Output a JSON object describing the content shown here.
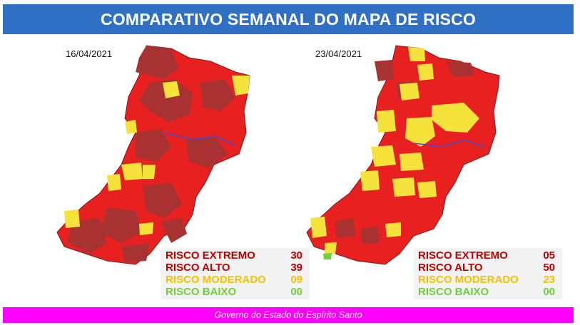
{
  "header": {
    "title": "COMPARATIVO SEMANAL DO MAPA DE RISCO"
  },
  "colors": {
    "risco_extremo": "#a83232",
    "risco_alto": "#e82020",
    "risco_moderado": "#f5e23b",
    "risco_baixo": "#6fcf3a",
    "header_bg": "#2f6fc4",
    "footer_bg": "#ff00ff"
  },
  "panels": [
    {
      "date": "16/04/2021",
      "legend": [
        {
          "label": "RISCO EXTREMO",
          "value": "30",
          "color": "#c00000"
        },
        {
          "label": "RISCO ALTO",
          "value": "39",
          "color": "#c00000"
        },
        {
          "label": "RISCO MODERADO",
          "value": "09",
          "color": "#f5c000"
        },
        {
          "label": "RISCO BAIXO",
          "value": "00",
          "color": "#6fcf3a"
        }
      ]
    },
    {
      "date": "23/04/2021",
      "legend": [
        {
          "label": "RISCO EXTREMO",
          "value": "05",
          "color": "#c00000"
        },
        {
          "label": "RISCO ALTO",
          "value": "50",
          "color": "#c00000"
        },
        {
          "label": "RISCO MODERADO",
          "value": "23",
          "color": "#f5c000"
        },
        {
          "label": "RISCO BAIXO",
          "value": "00",
          "color": "#6fcf3a"
        }
      ]
    }
  ],
  "footer": {
    "text": "Governo do Estado do Espírito Santo"
  }
}
